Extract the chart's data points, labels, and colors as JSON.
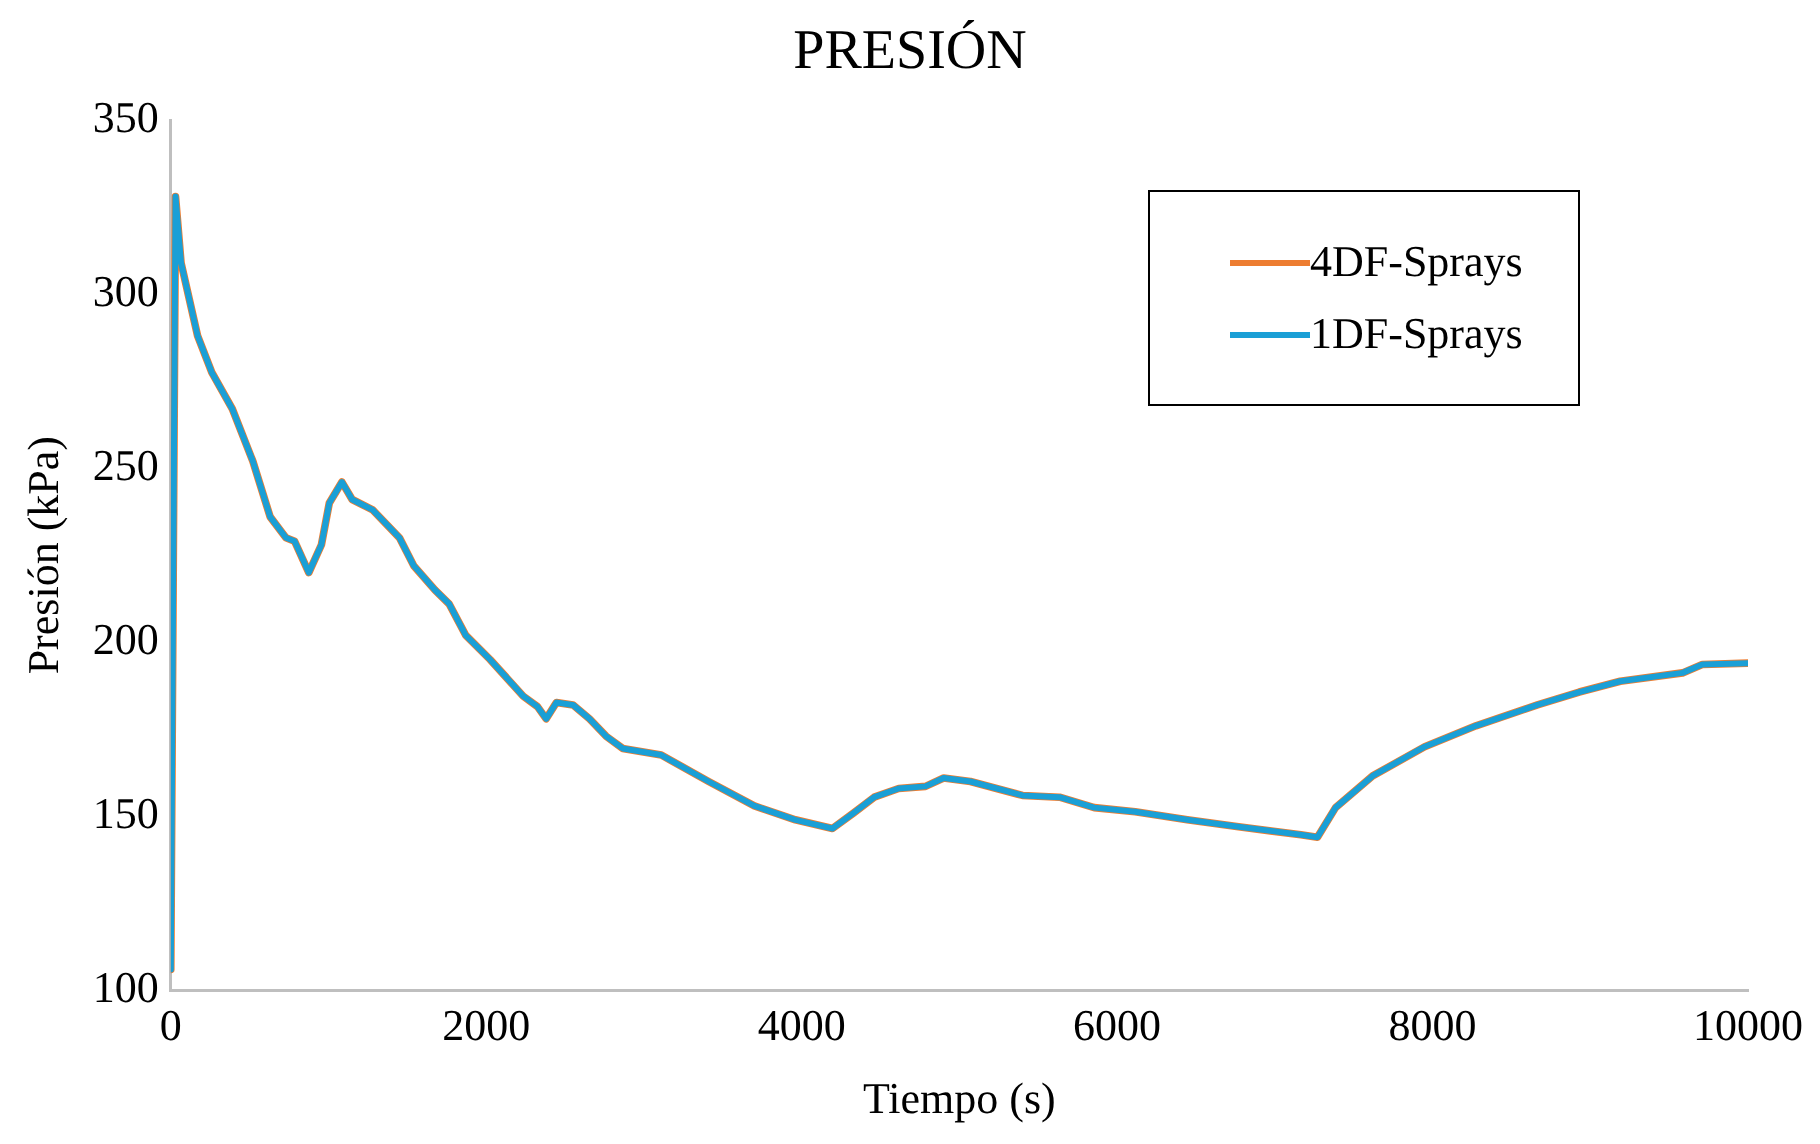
{
  "chart_data": {
    "type": "line",
    "title": "PRESIÓN",
    "xlabel": "Tiempo (s)",
    "ylabel": "Presión (kPa)",
    "x": [
      0,
      30,
      65,
      170,
      260,
      390,
      520,
      630,
      730,
      785,
      875,
      955,
      1005,
      1085,
      1150,
      1280,
      1450,
      1540,
      1675,
      1765,
      1870,
      2025,
      2235,
      2325,
      2380,
      2445,
      2550,
      2655,
      2760,
      2865,
      3110,
      3410,
      3700,
      3960,
      4195,
      4330,
      4460,
      4615,
      4785,
      4900,
      5070,
      5400,
      5635,
      5855,
      6115,
      6445,
      6770,
      7165,
      7270,
      7385,
      7620,
      7950,
      8275,
      8665,
      8930,
      9190,
      9585,
      9710,
      10000
    ],
    "series": [
      {
        "name": "4DF-Sprays",
        "color": "#ed7d31",
        "values": [
          106,
          328,
          309,
          288,
          277.5,
          267,
          252,
          236,
          230,
          229,
          220,
          228,
          240,
          246,
          241,
          238,
          230,
          222,
          215,
          211,
          202,
          195,
          184.5,
          181.5,
          178,
          182.7,
          182,
          178,
          173,
          169.5,
          167.6,
          160,
          153,
          149,
          146.5,
          151,
          155.5,
          158,
          158.6,
          161,
          160,
          156,
          155.5,
          152.5,
          151.3,
          149,
          147,
          144.7,
          144,
          152.5,
          161.6,
          170,
          176,
          182,
          185.7,
          188.8,
          191.2,
          193.6,
          194
        ]
      },
      {
        "name": "1DF-Sprays",
        "color": "#1a9fd6",
        "values": [
          106,
          328,
          309,
          288,
          277.5,
          267,
          252,
          236,
          230,
          229,
          220,
          228,
          240,
          246,
          241,
          238,
          230,
          222,
          215,
          211,
          202,
          195,
          184.5,
          181.5,
          178,
          182.7,
          182,
          178,
          173,
          169.5,
          167.6,
          160,
          153,
          149,
          146.5,
          151,
          155.5,
          158,
          158.6,
          161,
          160,
          156,
          155.5,
          152.5,
          151.3,
          149,
          147,
          144.7,
          144,
          152.5,
          161.6,
          170,
          176,
          182,
          185.7,
          188.8,
          191.2,
          193.6,
          194
        ]
      }
    ],
    "xlim": [
      0,
      10000
    ],
    "xticks": [
      0,
      2000,
      4000,
      6000,
      8000,
      10000
    ],
    "ylim": [
      100,
      350
    ],
    "yticks": [
      100,
      150,
      200,
      250,
      300,
      350
    ],
    "grid": false,
    "legend": "top right",
    "marker": "none",
    "line_style": "solid"
  }
}
